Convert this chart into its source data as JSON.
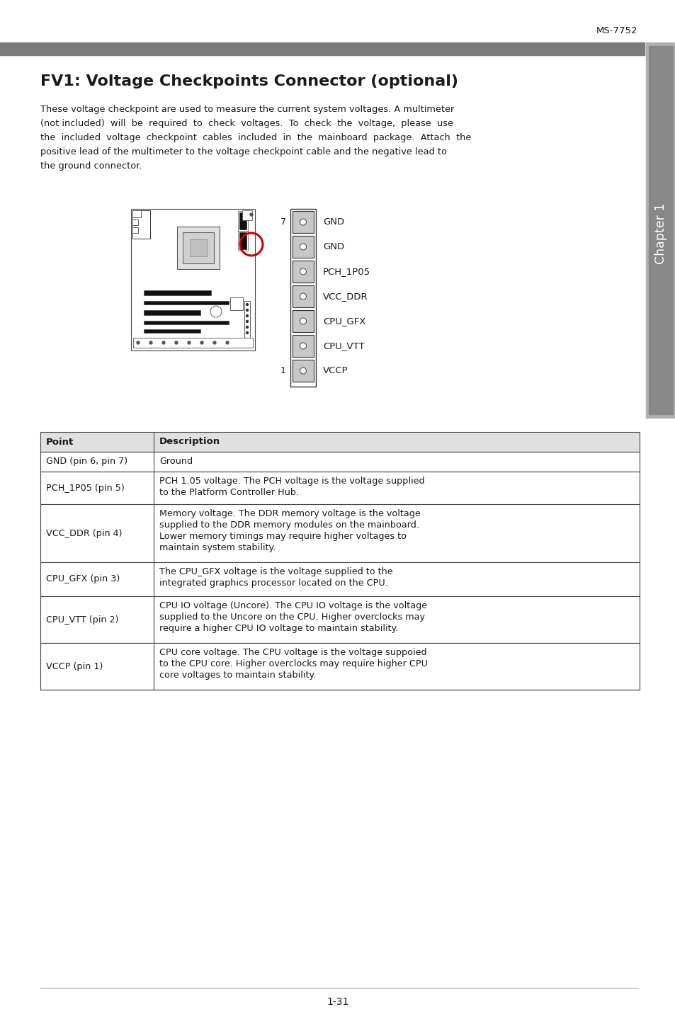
{
  "page_id": "MS-7752",
  "page_number": "1-31",
  "title": "FV1: Voltage Checkpoints Connector (optional)",
  "intro_text": "These voltage checkpoint are used to measure the current system voltages. A multimeter (not included) will be required to check voltages. To check the voltage, please use the included voltage checkpoint cables included in the mainboard package. Attach the positive lead of the multimeter to the voltage checkpoint cable and the negative lead to the ground connector.",
  "pin_labels": [
    {
      "pin": 7,
      "label": "GND"
    },
    {
      "pin": 6,
      "label": "GND"
    },
    {
      "pin": 5,
      "label": "PCH_1P05"
    },
    {
      "pin": 4,
      "label": "VCC_DDR"
    },
    {
      "pin": 3,
      "label": "CPU_GFX"
    },
    {
      "pin": 2,
      "label": "CPU_VTT"
    },
    {
      "pin": 1,
      "label": "VCCP"
    }
  ],
  "table_headers": [
    "Point",
    "Description"
  ],
  "table_rows": [
    [
      "GND (pin 6, pin 7)",
      "Ground"
    ],
    [
      "PCH_1P05 (pin 5)",
      "PCH 1.05 voltage. The PCH voltage is the voltage supplied\nto the Platform Controller Hub."
    ],
    [
      "VCC_DDR (pin 4)",
      "Memory voltage. The DDR memory voltage is the voltage\nsupplied to the DDR memory modules on the mainboard.\nLower memory timings may require higher voltages to\nmaintain system stability."
    ],
    [
      "CPU_GFX (pin 3)",
      "The CPU_GFX voltage is the voltage supplied to the\nintegrated graphics processor located on the CPU."
    ],
    [
      "CPU_VTT (pin 2)",
      "CPU IO voltage (Uncore). The CPU IO voltage is the voltage\nsupplied to the Uncore on the CPU. Higher overclocks may\nrequire a higher CPU IO voltage to maintain stability."
    ],
    [
      "VCCP (pin 1)",
      "CPU core voltage. The CPU voltage is the voltage suppoied\nto the CPU core. Higher overclocks may require higher CPU\ncore voltages to maintain stability."
    ]
  ],
  "header_bar_color": "#7a7a7a",
  "table_header_bg": "#e0e0e0",
  "table_line_color": "#444444",
  "text_color": "#1a1a1a",
  "title_color": "#1a1a1a",
  "pin_box_color": "#c8c8c8",
  "pin_box_border": "#333333",
  "sidebar_color": "#b0b0b0",
  "sidebar_dark": "#888888"
}
